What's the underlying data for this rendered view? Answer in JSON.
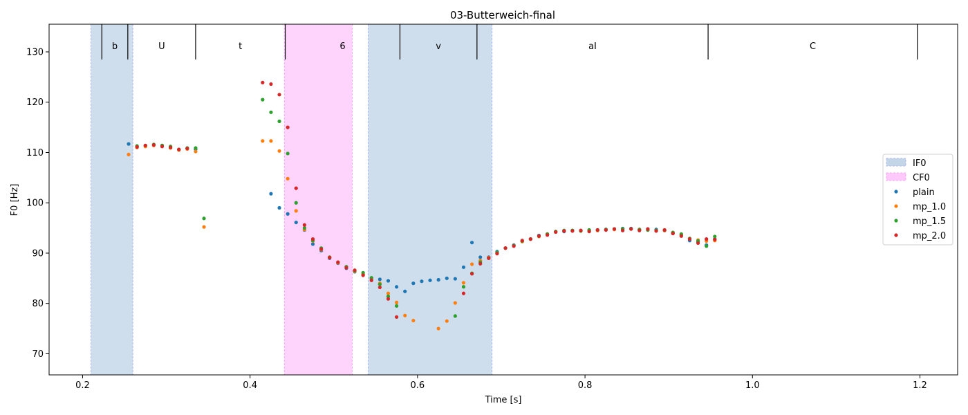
{
  "chart_data": {
    "type": "scatter",
    "title": "03-Butterweich-final",
    "xlabel": "Time [s]",
    "ylabel": "F0 [Hz]",
    "xlim": [
      0.16,
      1.245
    ],
    "ylim": [
      65.8,
      135.5
    ],
    "xticks": [
      "0.2",
      "0.4",
      "0.6",
      "0.8",
      "1.0",
      "1.2"
    ],
    "yticks": [
      "70",
      "80",
      "90",
      "100",
      "110",
      "120",
      "130"
    ],
    "grid": false,
    "legend_placement": "center-right",
    "spans": [
      {
        "name": "IF0",
        "color": "#c3d6e8",
        "edge": "#b0b8ee",
        "ranges": [
          [
            0.21,
            0.26
          ],
          [
            0.541,
            0.689
          ]
        ]
      },
      {
        "name": "CF0",
        "color": "#ffc9fb",
        "edge": "#f3a8f5",
        "ranges": [
          [
            0.441,
            0.522
          ]
        ]
      }
    ],
    "segments": {
      "boundaries": [
        0.223,
        0.254,
        0.335,
        0.442,
        0.579,
        0.671,
        0.947,
        1.197
      ],
      "labels": [
        {
          "text": "b",
          "x": 0.2385
        },
        {
          "text": "U",
          "x": 0.2945
        },
        {
          "text": "t",
          "x": 0.3885
        },
        {
          "text": "6",
          "x": 0.5105
        },
        {
          "text": "v",
          "x": 0.625
        },
        {
          "text": "aI",
          "x": 0.809
        },
        {
          "text": "C",
          "x": 1.072
        }
      ]
    },
    "series": [
      {
        "name": "plain",
        "color": "#1f77b4",
        "points": [
          [
            0.255,
            111.7
          ],
          [
            0.265,
            111.2
          ],
          [
            0.275,
            111.3
          ],
          [
            0.285,
            111.5
          ],
          [
            0.295,
            111.4
          ],
          [
            0.305,
            111.1
          ],
          [
            0.315,
            110.6
          ],
          [
            0.325,
            110.8
          ],
          [
            0.335,
            110.6
          ],
          [
            0.425,
            101.8
          ],
          [
            0.435,
            99.0
          ],
          [
            0.445,
            97.8
          ],
          [
            0.455,
            96.1
          ],
          [
            0.465,
            94.6
          ],
          [
            0.475,
            91.8
          ],
          [
            0.485,
            90.5
          ],
          [
            0.495,
            89.0
          ],
          [
            0.505,
            88.0
          ],
          [
            0.515,
            87.0
          ],
          [
            0.525,
            86.3
          ],
          [
            0.535,
            85.7
          ],
          [
            0.545,
            85.0
          ],
          [
            0.555,
            84.8
          ],
          [
            0.565,
            84.5
          ],
          [
            0.575,
            83.3
          ],
          [
            0.585,
            82.4
          ],
          [
            0.595,
            84.0
          ],
          [
            0.605,
            84.4
          ],
          [
            0.615,
            84.6
          ],
          [
            0.625,
            84.7
          ],
          [
            0.635,
            85.0
          ],
          [
            0.645,
            84.9
          ],
          [
            0.655,
            87.2
          ],
          [
            0.665,
            92.1
          ],
          [
            0.675,
            89.2
          ],
          [
            0.685,
            89.2
          ],
          [
            0.695,
            90.3
          ],
          [
            0.705,
            91.0
          ],
          [
            0.715,
            91.6
          ],
          [
            0.725,
            92.4
          ],
          [
            0.735,
            92.8
          ],
          [
            0.745,
            93.5
          ],
          [
            0.755,
            93.7
          ],
          [
            0.765,
            94.2
          ],
          [
            0.775,
            94.3
          ],
          [
            0.785,
            94.5
          ],
          [
            0.795,
            94.5
          ],
          [
            0.805,
            94.5
          ],
          [
            0.815,
            94.6
          ],
          [
            0.825,
            94.7
          ],
          [
            0.835,
            94.8
          ],
          [
            0.845,
            94.9
          ],
          [
            0.855,
            94.9
          ],
          [
            0.865,
            94.6
          ],
          [
            0.875,
            94.8
          ],
          [
            0.885,
            94.7
          ],
          [
            0.895,
            94.5
          ],
          [
            0.905,
            94.0
          ],
          [
            0.915,
            93.6
          ],
          [
            0.925,
            92.5
          ],
          [
            0.935,
            92.2
          ],
          [
            0.945,
            91.6
          ],
          [
            0.955,
            92.8
          ]
        ]
      },
      {
        "name": "mp_1.0",
        "color": "#ff7f0e",
        "points": [
          [
            0.255,
            109.6
          ],
          [
            0.265,
            111.0
          ],
          [
            0.275,
            111.2
          ],
          [
            0.285,
            111.4
          ],
          [
            0.295,
            111.3
          ],
          [
            0.305,
            110.9
          ],
          [
            0.315,
            110.5
          ],
          [
            0.325,
            110.7
          ],
          [
            0.335,
            110.2
          ],
          [
            0.345,
            95.2
          ],
          [
            0.415,
            112.3
          ],
          [
            0.425,
            112.3
          ],
          [
            0.435,
            110.3
          ],
          [
            0.445,
            104.8
          ],
          [
            0.455,
            98.4
          ],
          [
            0.465,
            94.7
          ],
          [
            0.475,
            92.4
          ],
          [
            0.485,
            90.7
          ],
          [
            0.495,
            89.2
          ],
          [
            0.505,
            88.1
          ],
          [
            0.515,
            87.2
          ],
          [
            0.525,
            86.4
          ],
          [
            0.535,
            85.8
          ],
          [
            0.545,
            85.0
          ],
          [
            0.555,
            84.0
          ],
          [
            0.565,
            82.0
          ],
          [
            0.575,
            80.2
          ],
          [
            0.585,
            77.6
          ],
          [
            0.595,
            76.6
          ],
          [
            0.625,
            75.0
          ],
          [
            0.635,
            76.5
          ],
          [
            0.645,
            80.1
          ],
          [
            0.655,
            84.1
          ],
          [
            0.665,
            87.8
          ],
          [
            0.675,
            88.5
          ],
          [
            0.685,
            89.1
          ],
          [
            0.695,
            90.1
          ],
          [
            0.705,
            91.0
          ],
          [
            0.715,
            91.5
          ],
          [
            0.725,
            92.3
          ],
          [
            0.735,
            92.8
          ],
          [
            0.745,
            93.3
          ],
          [
            0.755,
            93.8
          ],
          [
            0.765,
            94.2
          ],
          [
            0.775,
            94.4
          ],
          [
            0.785,
            94.5
          ],
          [
            0.795,
            94.4
          ],
          [
            0.805,
            94.4
          ],
          [
            0.815,
            94.5
          ],
          [
            0.825,
            94.6
          ],
          [
            0.835,
            94.7
          ],
          [
            0.845,
            94.8
          ],
          [
            0.855,
            94.8
          ],
          [
            0.865,
            94.7
          ],
          [
            0.875,
            94.6
          ],
          [
            0.885,
            94.5
          ],
          [
            0.895,
            94.5
          ],
          [
            0.905,
            94.1
          ],
          [
            0.915,
            93.7
          ],
          [
            0.925,
            92.9
          ],
          [
            0.935,
            92.6
          ],
          [
            0.945,
            92.4
          ],
          [
            0.955,
            92.5
          ]
        ]
      },
      {
        "name": "mp_1.5",
        "color": "#2ca02c",
        "points": [
          [
            0.265,
            111.3
          ],
          [
            0.275,
            111.4
          ],
          [
            0.285,
            111.6
          ],
          [
            0.295,
            111.4
          ],
          [
            0.305,
            111.2
          ],
          [
            0.315,
            110.6
          ],
          [
            0.325,
            110.9
          ],
          [
            0.335,
            110.9
          ],
          [
            0.345,
            96.9
          ],
          [
            0.415,
            120.5
          ],
          [
            0.425,
            118.0
          ],
          [
            0.435,
            116.2
          ],
          [
            0.445,
            109.8
          ],
          [
            0.455,
            100.0
          ],
          [
            0.465,
            95.0
          ],
          [
            0.475,
            92.5
          ],
          [
            0.485,
            91.0
          ],
          [
            0.495,
            89.2
          ],
          [
            0.505,
            88.2
          ],
          [
            0.515,
            87.3
          ],
          [
            0.525,
            86.5
          ],
          [
            0.535,
            86.1
          ],
          [
            0.545,
            85.1
          ],
          [
            0.555,
            83.8
          ],
          [
            0.565,
            81.4
          ],
          [
            0.575,
            79.5
          ],
          [
            0.645,
            77.5
          ],
          [
            0.655,
            83.3
          ],
          [
            0.665,
            86.0
          ],
          [
            0.675,
            88.2
          ],
          [
            0.685,
            89.0
          ],
          [
            0.695,
            90.1
          ],
          [
            0.705,
            91.0
          ],
          [
            0.715,
            91.5
          ],
          [
            0.725,
            92.4
          ],
          [
            0.735,
            92.8
          ],
          [
            0.745,
            93.4
          ],
          [
            0.755,
            93.8
          ],
          [
            0.765,
            94.3
          ],
          [
            0.775,
            94.5
          ],
          [
            0.785,
            94.5
          ],
          [
            0.795,
            94.4
          ],
          [
            0.805,
            94.6
          ],
          [
            0.815,
            94.6
          ],
          [
            0.825,
            94.7
          ],
          [
            0.835,
            94.8
          ],
          [
            0.845,
            94.8
          ],
          [
            0.855,
            94.8
          ],
          [
            0.865,
            94.7
          ],
          [
            0.875,
            94.6
          ],
          [
            0.885,
            94.5
          ],
          [
            0.895,
            94.6
          ],
          [
            0.905,
            94.1
          ],
          [
            0.915,
            93.8
          ],
          [
            0.925,
            92.9
          ],
          [
            0.935,
            92.4
          ],
          [
            0.945,
            91.4
          ],
          [
            0.955,
            93.3
          ]
        ]
      },
      {
        "name": "mp_2.0",
        "color": "#d62728",
        "points": [
          [
            0.265,
            111.1
          ],
          [
            0.275,
            111.4
          ],
          [
            0.285,
            111.5
          ],
          [
            0.295,
            111.2
          ],
          [
            0.305,
            111.0
          ],
          [
            0.315,
            110.6
          ],
          [
            0.325,
            110.8
          ],
          [
            0.415,
            123.9
          ],
          [
            0.425,
            123.6
          ],
          [
            0.435,
            121.5
          ],
          [
            0.445,
            115.0
          ],
          [
            0.455,
            102.9
          ],
          [
            0.465,
            95.6
          ],
          [
            0.475,
            92.8
          ],
          [
            0.485,
            90.8
          ],
          [
            0.495,
            89.1
          ],
          [
            0.505,
            88.2
          ],
          [
            0.515,
            87.1
          ],
          [
            0.525,
            86.6
          ],
          [
            0.535,
            85.6
          ],
          [
            0.545,
            84.6
          ],
          [
            0.555,
            83.2
          ],
          [
            0.565,
            80.9
          ],
          [
            0.575,
            77.3
          ],
          [
            0.655,
            82.0
          ],
          [
            0.665,
            85.9
          ],
          [
            0.675,
            87.9
          ],
          [
            0.685,
            89.0
          ],
          [
            0.695,
            89.9
          ],
          [
            0.705,
            91.0
          ],
          [
            0.715,
            91.4
          ],
          [
            0.725,
            92.5
          ],
          [
            0.735,
            92.8
          ],
          [
            0.745,
            93.4
          ],
          [
            0.755,
            93.6
          ],
          [
            0.765,
            94.2
          ],
          [
            0.775,
            94.4
          ],
          [
            0.785,
            94.4
          ],
          [
            0.795,
            94.5
          ],
          [
            0.805,
            94.3
          ],
          [
            0.815,
            94.6
          ],
          [
            0.825,
            94.6
          ],
          [
            0.835,
            94.8
          ],
          [
            0.845,
            94.5
          ],
          [
            0.855,
            94.8
          ],
          [
            0.865,
            94.5
          ],
          [
            0.875,
            94.8
          ],
          [
            0.885,
            94.4
          ],
          [
            0.895,
            94.6
          ],
          [
            0.905,
            93.9
          ],
          [
            0.915,
            93.4
          ],
          [
            0.925,
            92.8
          ],
          [
            0.935,
            92.0
          ],
          [
            0.945,
            92.8
          ],
          [
            0.955,
            92.7
          ]
        ]
      }
    ]
  }
}
